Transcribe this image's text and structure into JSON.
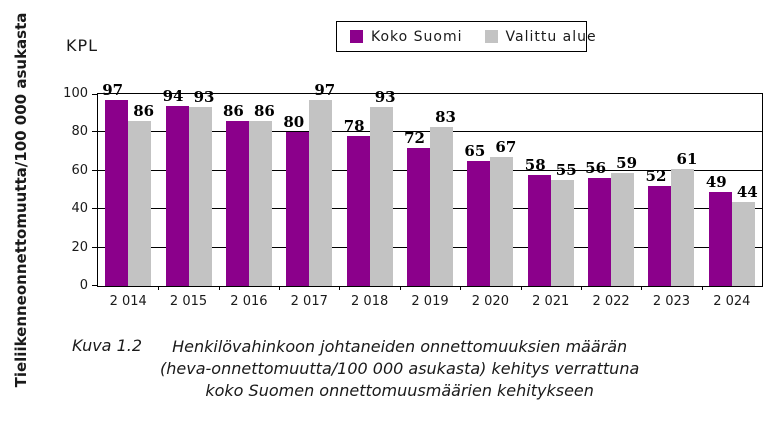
{
  "chart": {
    "unit_label": "KPL",
    "y_axis_title": "Tieliikenneonnettomuutta/100 000 asukasta"
  },
  "legend": {
    "items": [
      {
        "label": "Koko Suomi",
        "color": "#8B008B"
      },
      {
        "label": "Valittu alue",
        "color": "#C3C3C3"
      }
    ]
  },
  "chart_data": {
    "type": "bar",
    "title": "",
    "xlabel": "",
    "ylabel": "Tieliikenneonnettomuutta/100 000 asukasta",
    "unit": "KPL",
    "categories": [
      "2 014",
      "2 015",
      "2 016",
      "2 017",
      "2 018",
      "2 019",
      "2 020",
      "2 021",
      "2 022",
      "2 023",
      "2 024"
    ],
    "series": [
      {
        "name": "Koko Suomi",
        "color": "#8B008B",
        "values": [
          97,
          94,
          86,
          80,
          78,
          72,
          65,
          58,
          56,
          52,
          49
        ]
      },
      {
        "name": "Valittu alue",
        "color": "#C3C3C3",
        "values": [
          86,
          93,
          86,
          97,
          93,
          83,
          67,
          55,
          59,
          61,
          44
        ]
      }
    ],
    "ylim": [
      0,
      100
    ],
    "yticks": [
      0,
      20,
      40,
      60,
      80,
      100
    ],
    "grid": true,
    "legend_position": "top-center",
    "bar_value_labels": true
  },
  "caption": {
    "figure_label": "Kuva 1.2",
    "lines": [
      "Henkilövahinkoon johtaneiden onnettomuuksien määrän",
      "(heva-onnettomuutta/100 000 asukasta) kehitys verrattuna",
      "koko Suomen onnettomuusmäärien kehitykseen"
    ]
  }
}
